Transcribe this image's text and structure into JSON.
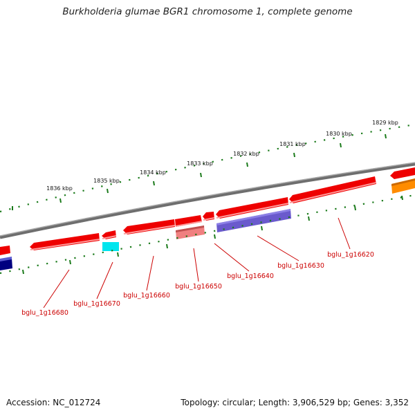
{
  "title": "Burkholderia glumae BGR1 chromosome 1, complete genome",
  "accession": "Accession: NC_012724",
  "topology": "Topology: circular; Length: 3,906,529 bp; Genes: 3,352",
  "colors": {
    "backbone": "#808080",
    "forward_gene": "#ee0000",
    "tick_green": "#1a7a1a",
    "label_red": "#cc0000",
    "pseudogene_pink": "#f08080",
    "cyan_gene": "#00e5ee",
    "blue_gene": "#6a5acd",
    "navy_gene": "#000080",
    "orange_gene": "#ff8c00"
  },
  "kbp_ticks": [
    "1829 kbp",
    "1830 kbp",
    "1831 kbp",
    "1832 kbp",
    "1833 kbp",
    "1834 kbp",
    "1835 kbp",
    "1836 kbp"
  ],
  "gene_labels": [
    "bglu_1g16620",
    "bglu_1g16630",
    "bglu_1g16640",
    "bglu_1g16650",
    "bglu_1g16660",
    "bglu_1g16670",
    "bglu_1g16680"
  ]
}
